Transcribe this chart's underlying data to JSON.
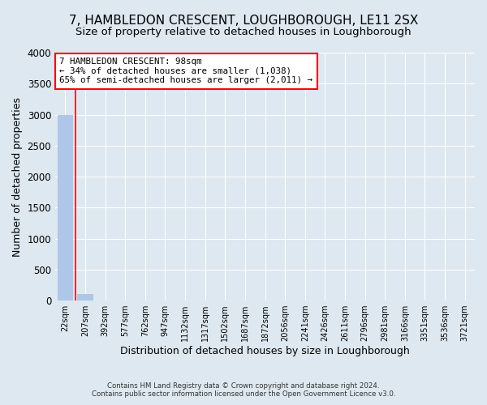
{
  "title": "7, HAMBLEDON CRESCENT, LOUGHBOROUGH, LE11 2SX",
  "subtitle": "Size of property relative to detached houses in Loughborough",
  "xlabel": "Distribution of detached houses by size in Loughborough",
  "ylabel": "Number of detached properties",
  "footer_line1": "Contains HM Land Registry data © Crown copyright and database right 2024.",
  "footer_line2": "Contains public sector information licensed under the Open Government Licence v3.0.",
  "categories": [
    "22sqm",
    "207sqm",
    "392sqm",
    "577sqm",
    "762sqm",
    "947sqm",
    "1132sqm",
    "1317sqm",
    "1502sqm",
    "1687sqm",
    "1872sqm",
    "2056sqm",
    "2241sqm",
    "2426sqm",
    "2611sqm",
    "2796sqm",
    "2981sqm",
    "3166sqm",
    "3351sqm",
    "3536sqm",
    "3721sqm"
  ],
  "values": [
    3000,
    110,
    0,
    0,
    0,
    0,
    0,
    0,
    0,
    0,
    0,
    0,
    0,
    0,
    0,
    0,
    0,
    0,
    0,
    0,
    0
  ],
  "bar_color": "#aec6e8",
  "background_color": "#dde8f0",
  "annotation_line1": "7 HAMBLEDON CRESCENT: 98sqm",
  "annotation_line2": "← 34% of detached houses are smaller (1,038)",
  "annotation_line3": "65% of semi-detached houses are larger (2,011) →",
  "annotation_box_color": "red",
  "annotation_fill": "white",
  "ylim": [
    0,
    4000
  ],
  "yticks": [
    0,
    500,
    1000,
    1500,
    2000,
    2500,
    3000,
    3500,
    4000
  ],
  "grid_color": "white",
  "title_fontsize": 11,
  "subtitle_fontsize": 9.5,
  "xlabel_fontsize": 9,
  "ylabel_fontsize": 9
}
